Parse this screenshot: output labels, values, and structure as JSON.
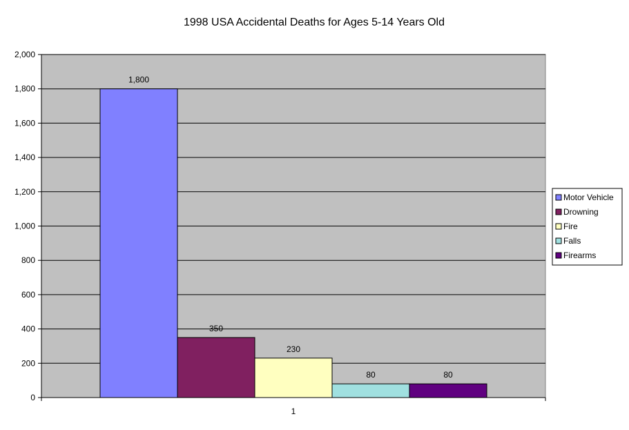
{
  "chart_data": {
    "type": "bar",
    "title": "1998 USA Accidental Deaths for Ages 5-14 Years Old",
    "xlabel": "",
    "ylabel": "",
    "categories": [
      "1"
    ],
    "series": [
      {
        "name": "Motor Vehicle",
        "values": [
          1800
        ],
        "color": "#8080ff",
        "label": "1,800"
      },
      {
        "name": "Drowning",
        "values": [
          350
        ],
        "color": "#802060",
        "label": "350"
      },
      {
        "name": "Fire",
        "values": [
          230
        ],
        "color": "#ffffc0",
        "label": "230"
      },
      {
        "name": "Falls",
        "values": [
          80
        ],
        "color": "#a0e0e0",
        "label": "80"
      },
      {
        "name": "Firearms",
        "values": [
          80
        ],
        "color": "#600080",
        "label": "80"
      }
    ],
    "ylim": [
      0,
      2000
    ],
    "yticks": [
      0,
      200,
      400,
      600,
      800,
      1000,
      1200,
      1400,
      1600,
      1800,
      2000
    ],
    "ytick_labels": [
      "0",
      "200",
      "400",
      "600",
      "800",
      "1,000",
      "1,200",
      "1,400",
      "1,600",
      "1,800",
      "2,000"
    ],
    "grid": true,
    "plot_background": "#c0c0c0",
    "legend_position": "right"
  }
}
